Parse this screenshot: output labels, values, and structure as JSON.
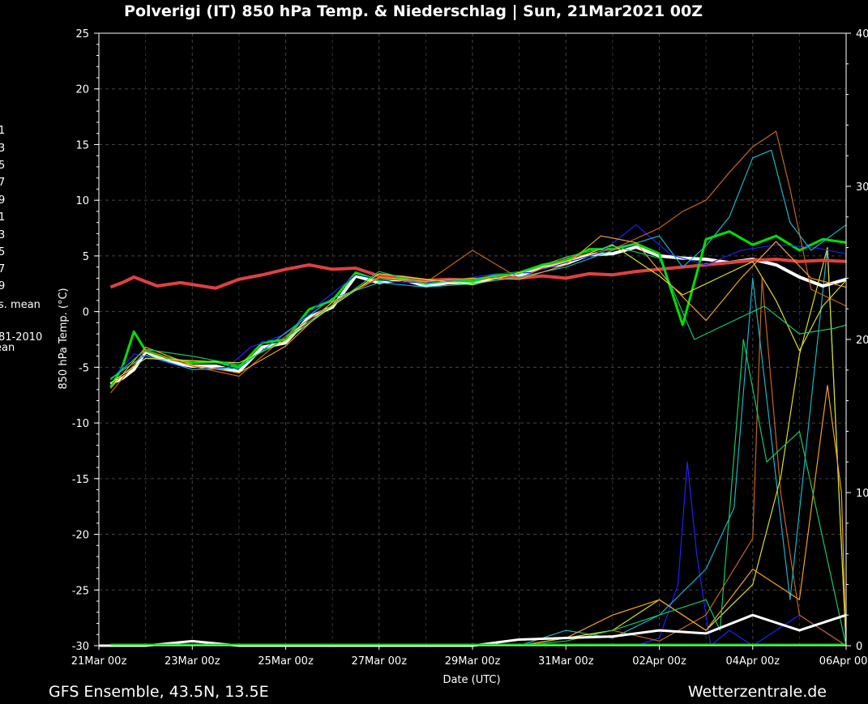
{
  "chart_data": {
    "type": "line",
    "title": "Polverigi  (IT)  850 hPa Temp. & Niederschlag | Sun, 21Mar2021 00Z",
    "xlabel": "Date (UTC)",
    "ylabel": "850 hPa Temp. (°C)",
    "ylim": [
      -30,
      25
    ],
    "y_ticks": [
      "25",
      "20",
      "15",
      "10",
      "5",
      "0",
      "-5",
      "-10",
      "-15",
      "-20",
      "-25",
      "-30"
    ],
    "y2lim": [
      0,
      40
    ],
    "y2_ticks": [
      "40",
      "30",
      "20",
      "10",
      "0"
    ],
    "x_ticks": [
      "21Mar 00z",
      "23Mar 00z",
      "25Mar 00z",
      "27Mar 00z",
      "29Mar 00z",
      "31Mar 00z",
      "02Apr 00z",
      "04Apr 00z",
      "06Apr 00z"
    ],
    "x_range_days": [
      0,
      16
    ],
    "legend_fragments": [
      "1",
      "3",
      "5",
      "7",
      "9",
      "1",
      "3",
      "5",
      "7",
      "9",
      "s. mean",
      "81-2010",
      "ean"
    ],
    "grid": true,
    "series": [
      {
        "color": "#ffffff",
        "points": [
          [
            0.25,
            -6.5
          ],
          [
            0.5,
            -6.0
          ],
          [
            0.75,
            -5.2
          ],
          [
            1,
            -3.6
          ],
          [
            1.5,
            -4.5
          ],
          [
            2,
            -4.9
          ],
          [
            2.5,
            -4.9
          ],
          [
            3,
            -5.4
          ],
          [
            3.5,
            -3.2
          ],
          [
            4,
            -2.8
          ],
          [
            4.5,
            -0.5
          ],
          [
            5,
            0.4
          ],
          [
            5.5,
            3.2
          ],
          [
            6,
            2.6
          ],
          [
            6.5,
            2.9
          ],
          [
            7,
            2.3
          ],
          [
            7.5,
            2.6
          ],
          [
            8,
            2.6
          ],
          [
            8.5,
            3.1
          ],
          [
            9,
            3.2
          ],
          [
            9.5,
            4.0
          ],
          [
            10,
            4.3
          ],
          [
            10.5,
            5.1
          ],
          [
            11,
            5.2
          ],
          [
            11.5,
            5.8
          ],
          [
            12,
            5.0
          ],
          [
            12.5,
            4.8
          ],
          [
            13,
            4.7
          ],
          [
            13.5,
            4.4
          ],
          [
            14,
            4.7
          ],
          [
            14.5,
            4.2
          ],
          [
            15,
            3.1
          ],
          [
            15.5,
            2.3
          ],
          [
            16,
            2.9
          ]
        ]
      },
      {
        "color": "#e04040",
        "points": [
          [
            0.25,
            2.2
          ],
          [
            0.5,
            2.6
          ],
          [
            0.75,
            3.1
          ],
          [
            1.25,
            2.3
          ],
          [
            1.75,
            2.6
          ],
          [
            2.5,
            2.1
          ],
          [
            3,
            2.9
          ],
          [
            3.5,
            3.3
          ],
          [
            4,
            3.8
          ],
          [
            4.5,
            4.2
          ],
          [
            5,
            3.8
          ],
          [
            5.5,
            3.9
          ],
          [
            6,
            3.2
          ],
          [
            6.5,
            3.1
          ],
          [
            7,
            2.8
          ],
          [
            7.5,
            2.9
          ],
          [
            8,
            2.8
          ],
          [
            8.5,
            3.2
          ],
          [
            9,
            3.0
          ],
          [
            9.5,
            3.2
          ],
          [
            10,
            3.0
          ],
          [
            10.5,
            3.4
          ],
          [
            11,
            3.3
          ],
          [
            11.5,
            3.6
          ],
          [
            12,
            3.8
          ],
          [
            12.5,
            4.0
          ],
          [
            13,
            4.2
          ],
          [
            13.5,
            4.4
          ],
          [
            14,
            4.6
          ],
          [
            14.5,
            4.7
          ],
          [
            15,
            4.5
          ],
          [
            15.5,
            4.6
          ],
          [
            16,
            4.5
          ]
        ]
      },
      {
        "color": "#00e000",
        "points": [
          [
            0.25,
            -6.8
          ],
          [
            0.5,
            -5.0
          ],
          [
            0.75,
            -1.8
          ],
          [
            1,
            -3.5
          ],
          [
            1.5,
            -4.2
          ],
          [
            2,
            -4.6
          ],
          [
            2.5,
            -4.5
          ],
          [
            3,
            -5.0
          ],
          [
            3.5,
            -2.8
          ],
          [
            4,
            -2.5
          ],
          [
            4.5,
            0.2
          ],
          [
            5,
            1.0
          ],
          [
            5.5,
            3.5
          ],
          [
            6,
            2.8
          ],
          [
            6.5,
            3.0
          ],
          [
            7,
            2.5
          ],
          [
            7.5,
            2.8
          ],
          [
            8,
            2.7
          ],
          [
            8.5,
            3.3
          ],
          [
            9,
            3.5
          ],
          [
            9.5,
            4.2
          ],
          [
            10,
            4.6
          ],
          [
            10.5,
            5.6
          ],
          [
            11,
            5.6
          ],
          [
            11.5,
            6.1
          ],
          [
            12,
            5.2
          ],
          [
            12.5,
            -1.2
          ],
          [
            13,
            6.5
          ],
          [
            13.5,
            7.2
          ],
          [
            14,
            6.0
          ],
          [
            14.5,
            6.8
          ],
          [
            15,
            5.5
          ],
          [
            15.5,
            6.5
          ],
          [
            16,
            6.2
          ]
        ]
      },
      {
        "color": "#2020ff",
        "points": [
          [
            0.25,
            -6.2
          ],
          [
            0.75,
            -3.8
          ],
          [
            1.25,
            -4.3
          ],
          [
            2,
            -5.2
          ],
          [
            2.75,
            -5.0
          ],
          [
            3.25,
            -3.2
          ],
          [
            4,
            -2.0
          ],
          [
            4.75,
            0.8
          ],
          [
            5.5,
            3.3
          ],
          [
            6.25,
            2.7
          ],
          [
            7,
            2.6
          ],
          [
            7.75,
            2.9
          ],
          [
            8.5,
            3.4
          ],
          [
            9.25,
            3.5
          ],
          [
            10,
            4.4
          ],
          [
            10.75,
            5.3
          ],
          [
            11.5,
            7.8
          ],
          [
            12.25,
            5.1
          ],
          [
            13,
            4.2
          ],
          [
            13.75,
            5.5
          ],
          [
            14.5,
            6.0
          ],
          [
            15.25,
            5.8
          ],
          [
            16,
            5.2
          ]
        ]
      },
      {
        "color": "#c86418",
        "points": [
          [
            0.25,
            -7.3
          ],
          [
            1,
            -3.5
          ],
          [
            2,
            -4.9
          ],
          [
            3,
            -5.8
          ],
          [
            4,
            -2.2
          ],
          [
            5,
            0.8
          ],
          [
            6,
            3.0
          ],
          [
            7,
            2.6
          ],
          [
            8,
            5.5
          ],
          [
            9,
            3.0
          ],
          [
            10,
            4.8
          ],
          [
            11,
            5.6
          ],
          [
            12,
            7.5
          ],
          [
            12.5,
            9.0
          ],
          [
            13,
            10.0
          ],
          [
            13.5,
            12.5
          ],
          [
            14,
            14.8
          ],
          [
            14.5,
            16.2
          ],
          [
            14.8,
            11.0
          ],
          [
            15.25,
            2.0
          ],
          [
            16,
            0.5
          ]
        ]
      },
      {
        "color": "#18b4c8",
        "points": [
          [
            0.25,
            -6.0
          ],
          [
            1,
            -3.9
          ],
          [
            2,
            -5.2
          ],
          [
            3,
            -5.1
          ],
          [
            4,
            -1.9
          ],
          [
            5,
            1.2
          ],
          [
            6,
            2.6
          ],
          [
            7,
            2.2
          ],
          [
            8,
            2.5
          ],
          [
            9,
            3.1
          ],
          [
            10,
            4.0
          ],
          [
            11,
            5.5
          ],
          [
            12,
            6.8
          ],
          [
            12.5,
            4.0
          ],
          [
            13,
            5.9
          ],
          [
            13.5,
            8.5
          ],
          [
            14,
            13.8
          ],
          [
            14.4,
            14.5
          ],
          [
            14.8,
            8.0
          ],
          [
            15.25,
            5.5
          ],
          [
            16,
            7.8
          ]
        ]
      },
      {
        "color": "#dcdc28",
        "points": [
          [
            0.25,
            -6.4
          ],
          [
            1,
            -4.2
          ],
          [
            2,
            -4.4
          ],
          [
            3,
            -4.6
          ],
          [
            4,
            -2.6
          ],
          [
            5,
            0.5
          ],
          [
            6,
            3.4
          ],
          [
            7,
            2.9
          ],
          [
            8,
            2.4
          ],
          [
            9,
            3.5
          ],
          [
            10,
            4.5
          ],
          [
            11,
            6.0
          ],
          [
            12,
            3.2
          ],
          [
            12.5,
            1.5
          ],
          [
            13,
            2.5
          ],
          [
            14,
            4.5
          ],
          [
            14.5,
            1.0
          ],
          [
            15,
            -3.5
          ],
          [
            15.5,
            0.5
          ],
          [
            16,
            2.8
          ]
        ]
      },
      {
        "color": "#f0a028",
        "points": [
          [
            0.25,
            -6.9
          ],
          [
            1,
            -3.2
          ],
          [
            2,
            -4.8
          ],
          [
            3,
            -5.5
          ],
          [
            4,
            -3.1
          ],
          [
            5,
            0.9
          ],
          [
            6,
            3.1
          ],
          [
            7,
            2.7
          ],
          [
            8,
            3.0
          ],
          [
            9,
            2.9
          ],
          [
            10,
            4.2
          ],
          [
            10.75,
            6.8
          ],
          [
            11.5,
            6.2
          ],
          [
            12.25,
            2.4
          ],
          [
            13,
            -0.8
          ],
          [
            13.75,
            3.0
          ],
          [
            14.5,
            6.3
          ],
          [
            15.25,
            3.0
          ],
          [
            16,
            2.2
          ]
        ]
      },
      {
        "color": "#14c864",
        "points": [
          [
            0.25,
            -6.1
          ],
          [
            1,
            -3.4
          ],
          [
            2,
            -4.0
          ],
          [
            3,
            -4.8
          ],
          [
            4,
            -2.4
          ],
          [
            5,
            0.6
          ],
          [
            6,
            3.6
          ],
          [
            7,
            2.5
          ],
          [
            8,
            2.9
          ],
          [
            9,
            3.4
          ],
          [
            10,
            4.9
          ],
          [
            11,
            5.9
          ],
          [
            12,
            4.8
          ],
          [
            12.75,
            -2.5
          ],
          [
            13.5,
            -1.0
          ],
          [
            14.25,
            0.5
          ],
          [
            15,
            -2.0
          ],
          [
            15.75,
            -1.5
          ],
          [
            16,
            -1.2
          ]
        ]
      }
    ],
    "precip_series": [
      {
        "color": "#2020ff",
        "x": [
          11.5,
          12.0,
          12.4,
          12.6,
          12.8,
          13.1,
          13.5,
          14,
          15,
          16
        ],
        "y": [
          0,
          0.5,
          4,
          12,
          6,
          0,
          1,
          0,
          2,
          0
        ]
      },
      {
        "color": "#c86418",
        "x": [
          9,
          10,
          11,
          12,
          13,
          14,
          14.2,
          14.6,
          15,
          16
        ],
        "y": [
          0,
          0.5,
          1,
          0.3,
          2,
          7,
          24,
          10,
          2,
          0
        ]
      },
      {
        "color": "#18b4c8",
        "x": [
          9,
          10,
          11,
          12,
          13,
          13.6,
          14,
          14.8,
          15.6,
          16
        ],
        "y": [
          0,
          1,
          0.5,
          2,
          5,
          9,
          24,
          3,
          26,
          0
        ]
      },
      {
        "color": "#dcdc28",
        "x": [
          9,
          10,
          11,
          12,
          13,
          14,
          14.6,
          15.0,
          15.6,
          16
        ],
        "y": [
          0,
          0.5,
          1,
          3,
          1,
          4,
          11,
          19,
          26,
          0
        ]
      },
      {
        "color": "#f0a028",
        "x": [
          9,
          10,
          11,
          12,
          13,
          14,
          15,
          15.6,
          15.9,
          16
        ],
        "y": [
          0,
          0.5,
          2,
          3,
          1,
          5,
          3,
          17,
          10,
          0
        ]
      },
      {
        "color": "#14c864",
        "x": [
          9,
          10,
          11,
          12,
          13,
          13.3,
          13.8,
          14.3,
          15,
          16
        ],
        "y": [
          0,
          0.3,
          1,
          2,
          3,
          1,
          20,
          12,
          14,
          0
        ]
      },
      {
        "color": "#ffffff",
        "x": [
          0,
          1,
          2,
          3,
          4,
          5,
          6,
          7,
          8,
          9,
          10,
          11,
          12,
          13,
          14,
          15,
          16
        ],
        "y": [
          0,
          0,
          0.3,
          0,
          0,
          0,
          0,
          0,
          0,
          0.4,
          0.5,
          0.6,
          1,
          0.8,
          2,
          1,
          2
        ]
      }
    ]
  },
  "footer": {
    "left": "GFS Ensemble, 43.5N, 13.5E",
    "right": "Wetterzentrale.de"
  }
}
